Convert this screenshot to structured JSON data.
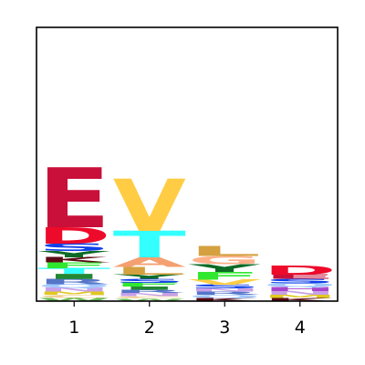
{
  "chart_data": {
    "type": "sequence-logo",
    "title": "",
    "xlabel": "",
    "ylabel": "",
    "ylim": [
      0,
      4.32
    ],
    "x_ticks": [
      "1",
      "2",
      "3",
      "4"
    ],
    "colors": {
      "E": "#c8103a",
      "D": "#ee0a2a",
      "V": "#ffcc44",
      "T": "#33ffff",
      "S": "#1040e8",
      "Y": "#0d6b26",
      "A": "#f4a070",
      "G": "#ffb088",
      "F": "#30e830",
      "L": "#d4a040",
      "I": "#228833",
      "K": "#5a0a14",
      "N": "#c8a0e8",
      "Q": "#a0c8ff",
      "R": "#5575c8",
      "H": "#aa44cc",
      "M": "#e0c820",
      "C": "#f0d090",
      "W": "#66bb55",
      "P": "#888888"
    },
    "positions": [
      {
        "label": "1",
        "stack": [
          {
            "letter": "W",
            "value": 0.05
          },
          {
            "letter": "C",
            "value": 0.05
          },
          {
            "letter": "M",
            "value": 0.05
          },
          {
            "letter": "N",
            "value": 0.06
          },
          {
            "letter": "Q",
            "value": 0.06
          },
          {
            "letter": "R",
            "value": 0.08
          },
          {
            "letter": "I",
            "value": 0.08
          },
          {
            "letter": "T",
            "value": 0.09
          },
          {
            "letter": "F",
            "value": 0.09
          },
          {
            "letter": "K",
            "value": 0.08
          },
          {
            "letter": "Y",
            "value": 0.1
          },
          {
            "letter": "S",
            "value": 0.12
          },
          {
            "letter": "D",
            "value": 0.26
          },
          {
            "letter": "E",
            "value": 0.95
          }
        ]
      },
      {
        "label": "2",
        "stack": [
          {
            "letter": "W",
            "value": 0.04
          },
          {
            "letter": "C",
            "value": 0.04
          },
          {
            "letter": "N",
            "value": 0.05
          },
          {
            "letter": "R",
            "value": 0.05
          },
          {
            "letter": "I",
            "value": 0.05
          },
          {
            "letter": "F",
            "value": 0.06
          },
          {
            "letter": "S",
            "value": 0.06
          },
          {
            "letter": "Y",
            "value": 0.07
          },
          {
            "letter": "L",
            "value": 0.12
          },
          {
            "letter": "A",
            "value": 0.15
          },
          {
            "letter": "T",
            "value": 0.42
          },
          {
            "letter": "V",
            "value": 0.82
          }
        ]
      },
      {
        "label": "3",
        "stack": [
          {
            "letter": "K",
            "value": 0.05
          },
          {
            "letter": "Q",
            "value": 0.05
          },
          {
            "letter": "R",
            "value": 0.05
          },
          {
            "letter": "N",
            "value": 0.05
          },
          {
            "letter": "S",
            "value": 0.06
          },
          {
            "letter": "V",
            "value": 0.08
          },
          {
            "letter": "F",
            "value": 0.12
          },
          {
            "letter": "Y",
            "value": 0.12
          },
          {
            "letter": "G",
            "value": 0.13
          },
          {
            "letter": "L",
            "value": 0.16
          }
        ]
      },
      {
        "label": "4",
        "stack": [
          {
            "letter": "K",
            "value": 0.05
          },
          {
            "letter": "M",
            "value": 0.05
          },
          {
            "letter": "N",
            "value": 0.06
          },
          {
            "letter": "H",
            "value": 0.06
          },
          {
            "letter": "Q",
            "value": 0.06
          },
          {
            "letter": "S",
            "value": 0.07
          },
          {
            "letter": "E",
            "value": 0.07
          },
          {
            "letter": "D",
            "value": 0.14
          }
        ]
      }
    ]
  }
}
